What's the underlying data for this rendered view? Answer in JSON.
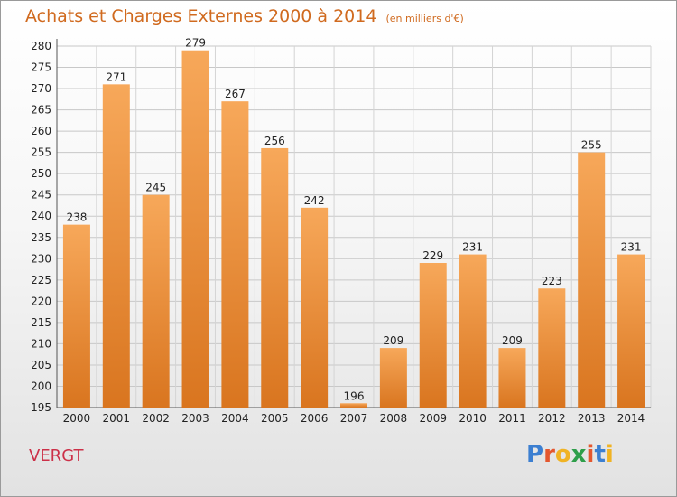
{
  "header": {
    "title": "Achats et Charges Externes 2000 à 2014",
    "unit": "(en milliers d'€)"
  },
  "place": "VERGT",
  "logo": {
    "text": "Proxiti",
    "letter_colors": [
      "#3c7fd1",
      "#e4572e",
      "#f0b323",
      "#2e9e4a",
      "#e4572e",
      "#3c7fd1",
      "#f0b323"
    ]
  },
  "colors": {
    "bar_top": "#f7a85a",
    "bar_bottom": "#d9751f",
    "title": "#d06a1f",
    "place": "#cc3048"
  },
  "chart_data": {
    "type": "bar",
    "categories": [
      "2000",
      "2001",
      "2002",
      "2003",
      "2004",
      "2005",
      "2006",
      "2007",
      "2008",
      "2009",
      "2010",
      "2011",
      "2012",
      "2013",
      "2014"
    ],
    "values": [
      238,
      271,
      245,
      279,
      267,
      256,
      242,
      196,
      209,
      229,
      231,
      209,
      223,
      255,
      231
    ],
    "title": "Achats et Charges Externes 2000 à 2014",
    "subtitle": "(en milliers d'€)",
    "xlabel": "",
    "ylabel": "",
    "ylim": [
      195,
      280
    ],
    "yticks": [
      195,
      200,
      205,
      210,
      215,
      220,
      225,
      230,
      235,
      240,
      245,
      250,
      255,
      260,
      265,
      270,
      275,
      280
    ],
    "grid": true,
    "legend": "none",
    "data_labels": true
  }
}
